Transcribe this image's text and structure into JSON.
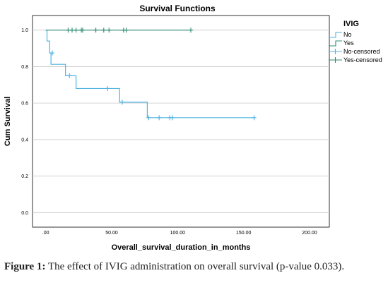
{
  "chart_data": {
    "type": "line",
    "title": "Survival Functions",
    "xlabel": "Overall_survival_duration_in_months",
    "ylabel": "Cum Survival",
    "xlim": [
      -10,
      215
    ],
    "ylim": [
      -0.08,
      1.08
    ],
    "x_ticks": [
      ".00",
      "50.00",
      "100.00",
      "150.00",
      "200.00"
    ],
    "x_tick_values": [
      0,
      50,
      100,
      150,
      200
    ],
    "y_ticks": [
      "0.0",
      "0.2",
      "0.4",
      "0.6",
      "0.8",
      "1.0"
    ],
    "y_tick_values": [
      0,
      0.2,
      0.4,
      0.6,
      0.8,
      1.0
    ],
    "grid": "horizontal",
    "legend_title": "IVIG",
    "legend_position": "right",
    "legend": [
      "No",
      "Yes",
      "No-censored",
      "Yes-censored"
    ],
    "series": [
      {
        "name": "No",
        "color": "#4fb3e0",
        "steps": [
          [
            0,
            1.0
          ],
          [
            1,
            0.94
          ],
          [
            3,
            0.875
          ],
          [
            4,
            0.8125
          ],
          [
            15,
            0.75
          ],
          [
            23,
            0.68
          ],
          [
            56,
            0.605
          ],
          [
            77,
            0.52
          ],
          [
            158,
            0.52
          ]
        ],
        "censored": [
          [
            5,
            0.875
          ],
          [
            18,
            0.75
          ],
          [
            47,
            0.68
          ],
          [
            58,
            0.605
          ],
          [
            78,
            0.52
          ],
          [
            86,
            0.52
          ],
          [
            94,
            0.52
          ],
          [
            96,
            0.52
          ],
          [
            158,
            0.52
          ]
        ]
      },
      {
        "name": "Yes",
        "color": "#2e8b75",
        "steps": [
          [
            0,
            1.0
          ],
          [
            110,
            1.0
          ]
        ],
        "censored": [
          [
            17,
            1.0
          ],
          [
            20,
            1.0
          ],
          [
            23,
            1.0
          ],
          [
            27,
            1.0
          ],
          [
            28,
            1.0
          ],
          [
            38,
            1.0
          ],
          [
            44,
            1.0
          ],
          [
            48,
            1.0
          ],
          [
            59,
            1.0
          ],
          [
            61,
            1.0
          ],
          [
            110,
            1.0
          ]
        ]
      }
    ]
  },
  "caption": {
    "label": "Figure 1:",
    "text": " The effect of IVIG administration on overall survival (p-value 0.033)."
  }
}
